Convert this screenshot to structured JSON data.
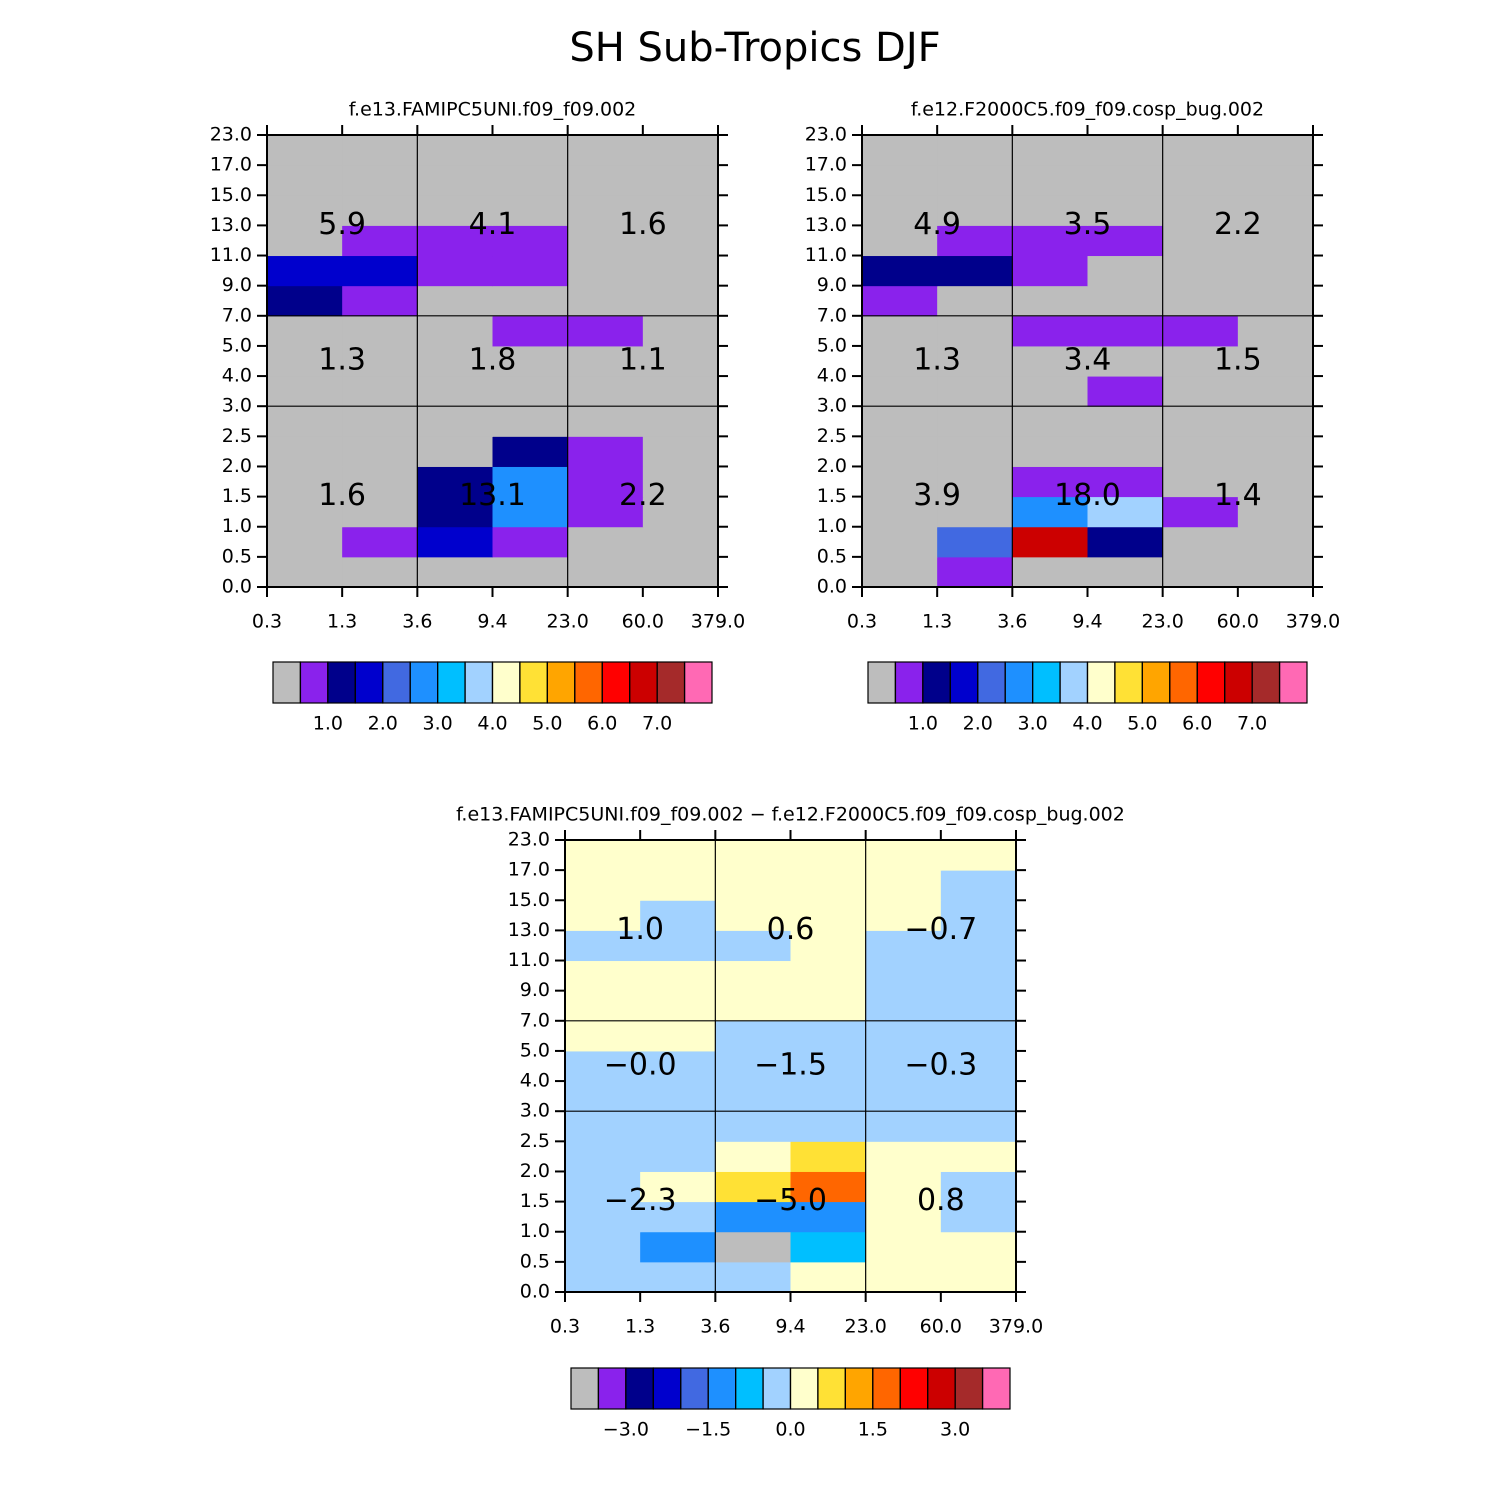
{
  "title": "SH Sub-Tropics DJF",
  "chart_data": [
    {
      "type": "heatmap",
      "title": "f.e13.FAMIPC5UNI.f09_f09.002",
      "x_edges": [
        0.3,
        1.3,
        3.6,
        9.4,
        {
          "value": 23,
          "label": "23.0"
        },
        {
          "value": 60,
          "label": "60.0"
        },
        {
          "value": 379,
          "label": "379.0"
        }
      ],
      "y_edges": [
        {
          "value": 0,
          "label": "0.0"
        },
        0.5,
        {
          "value": 1,
          "label": "1.0"
        },
        1.5,
        {
          "value": 2,
          "label": "2.0"
        },
        2.5,
        {
          "value": 3,
          "label": "3.0"
        },
        {
          "value": 4,
          "label": "4.0"
        },
        {
          "value": 5,
          "label": "5.0"
        },
        {
          "value": 7,
          "label": "7.0"
        },
        {
          "value": 9,
          "label": "9.0"
        },
        {
          "value": 11,
          "label": "11.0"
        },
        {
          "value": 13,
          "label": "13.0"
        },
        {
          "value": 15,
          "label": "15.0"
        },
        {
          "value": 17,
          "label": "17.0"
        },
        {
          "value": 23,
          "label": "23.0"
        }
      ],
      "values": [
        [
          0,
          0,
          0,
          0,
          0,
          0
        ],
        [
          0,
          0.75,
          1.75,
          0.75,
          0,
          0
        ],
        [
          0,
          0,
          1.25,
          2.75,
          0.75,
          0
        ],
        [
          0,
          0,
          1.25,
          2.75,
          0.75,
          0
        ],
        [
          0,
          0,
          0,
          1.25,
          0.75,
          0
        ],
        [
          0,
          0,
          0,
          0,
          0,
          0
        ],
        [
          0,
          0,
          0,
          0,
          0,
          0
        ],
        [
          0,
          0,
          0,
          0,
          0,
          0
        ],
        [
          0,
          0,
          0,
          0.75,
          0.75,
          0
        ],
        [
          1.25,
          0.75,
          0,
          0,
          0,
          0
        ],
        [
          1.75,
          1.75,
          0.75,
          0.75,
          0,
          0
        ],
        [
          0,
          0.75,
          0.75,
          0.75,
          0,
          0
        ],
        [
          0,
          0,
          0,
          0,
          0,
          0
        ],
        [
          0,
          0,
          0,
          0,
          0,
          0
        ],
        [
          0,
          0,
          0,
          0,
          0,
          0
        ]
      ],
      "box_values": [
        [
          1.6,
          13.1,
          2.2
        ],
        [
          1.3,
          1.8,
          1.1
        ],
        [
          5.9,
          4.1,
          1.6
        ]
      ],
      "box_labels": [
        [
          "1.6",
          "13.1",
          "2.2"
        ],
        [
          "1.3",
          "1.8",
          "1.1"
        ],
        [
          "5.9",
          "4.1",
          "1.6"
        ]
      ],
      "colorbar": {
        "levels": [
          0.5,
          1,
          1.5,
          2,
          2.5,
          3,
          3.5,
          4,
          4.5,
          5,
          5.5,
          6,
          6.5,
          7,
          7.5
        ],
        "ticks": [
          {
            "value": 1,
            "label": "1.0"
          },
          {
            "value": 2,
            "label": "2.0"
          },
          {
            "value": 3,
            "label": "3.0"
          },
          {
            "value": 4,
            "label": "4.0"
          },
          {
            "value": 5,
            "label": "5.0"
          },
          {
            "value": 6,
            "label": "6.0"
          },
          {
            "value": 7,
            "label": "7.0"
          }
        ],
        "colors": [
          "#bdbdbd",
          "#8a22ec",
          "#00008b",
          "#0000cd",
          "#4169e1",
          "#1e90ff",
          "#00bfff",
          "#a2d2ff",
          "#ffffcc",
          "#ffe135",
          "#ffa500",
          "#ff6600",
          "#ff0000",
          "#cc0000",
          "#a52a2a",
          "#ff69b4"
        ]
      }
    },
    {
      "type": "heatmap",
      "title": "f.e12.F2000C5.f09_f09.cosp_bug.002",
      "x_edges": [
        0.3,
        1.3,
        3.6,
        9.4,
        {
          "value": 23,
          "label": "23.0"
        },
        {
          "value": 60,
          "label": "60.0"
        },
        {
          "value": 379,
          "label": "379.0"
        }
      ],
      "y_edges": [
        {
          "value": 0,
          "label": "0.0"
        },
        0.5,
        {
          "value": 1,
          "label": "1.0"
        },
        1.5,
        {
          "value": 2,
          "label": "2.0"
        },
        2.5,
        {
          "value": 3,
          "label": "3.0"
        },
        {
          "value": 4,
          "label": "4.0"
        },
        {
          "value": 5,
          "label": "5.0"
        },
        {
          "value": 7,
          "label": "7.0"
        },
        {
          "value": 9,
          "label": "9.0"
        },
        {
          "value": 11,
          "label": "11.0"
        },
        {
          "value": 13,
          "label": "13.0"
        },
        {
          "value": 15,
          "label": "15.0"
        },
        {
          "value": 17,
          "label": "17.0"
        },
        {
          "value": 23,
          "label": "23.0"
        }
      ],
      "values": [
        [
          0,
          0.75,
          0,
          0,
          0,
          0
        ],
        [
          0,
          2.25,
          6.75,
          1.25,
          0,
          0
        ],
        [
          0,
          0,
          2.75,
          3.75,
          0.75,
          0
        ],
        [
          0,
          0,
          0.75,
          0.75,
          0,
          0
        ],
        [
          0,
          0,
          0,
          0,
          0,
          0
        ],
        [
          0,
          0,
          0,
          0,
          0,
          0
        ],
        [
          0,
          0,
          0,
          0.75,
          0,
          0
        ],
        [
          0,
          0,
          0,
          0,
          0,
          0
        ],
        [
          0,
          0,
          0.75,
          0.75,
          0.75,
          0
        ],
        [
          0.75,
          0,
          0,
          0,
          0,
          0
        ],
        [
          1.25,
          1.25,
          0.75,
          0,
          0,
          0
        ],
        [
          0,
          0.75,
          0.75,
          0.75,
          0,
          0
        ],
        [
          0,
          0,
          0,
          0,
          0,
          0
        ],
        [
          0,
          0,
          0,
          0,
          0,
          0
        ],
        [
          0,
          0,
          0,
          0,
          0,
          0
        ]
      ],
      "box_values": [
        [
          3.9,
          18.0,
          1.4
        ],
        [
          1.3,
          3.4,
          1.5
        ],
        [
          4.9,
          3.5,
          2.2
        ]
      ],
      "box_labels": [
        [
          "3.9",
          "18.0",
          "1.4"
        ],
        [
          "1.3",
          "3.4",
          "1.5"
        ],
        [
          "4.9",
          "3.5",
          "2.2"
        ]
      ],
      "colorbar": {
        "levels": [
          0.5,
          1,
          1.5,
          2,
          2.5,
          3,
          3.5,
          4,
          4.5,
          5,
          5.5,
          6,
          6.5,
          7,
          7.5
        ],
        "ticks": [
          {
            "value": 1,
            "label": "1.0"
          },
          {
            "value": 2,
            "label": "2.0"
          },
          {
            "value": 3,
            "label": "3.0"
          },
          {
            "value": 4,
            "label": "4.0"
          },
          {
            "value": 5,
            "label": "5.0"
          },
          {
            "value": 6,
            "label": "6.0"
          },
          {
            "value": 7,
            "label": "7.0"
          }
        ],
        "colors": [
          "#bdbdbd",
          "#8a22ec",
          "#00008b",
          "#0000cd",
          "#4169e1",
          "#1e90ff",
          "#00bfff",
          "#a2d2ff",
          "#ffffcc",
          "#ffe135",
          "#ffa500",
          "#ff6600",
          "#ff0000",
          "#cc0000",
          "#a52a2a",
          "#ff69b4"
        ]
      }
    },
    {
      "type": "heatmap",
      "title": "f.e13.FAMIPC5UNI.f09_f09.002 − f.e12.F2000C5.f09_f09.cosp_bug.002",
      "x_edges": [
        0.3,
        1.3,
        3.6,
        9.4,
        {
          "value": 23,
          "label": "23.0"
        },
        {
          "value": 60,
          "label": "60.0"
        },
        {
          "value": 379,
          "label": "379.0"
        }
      ],
      "y_edges": [
        {
          "value": 0,
          "label": "0.0"
        },
        0.5,
        {
          "value": 1,
          "label": "1.0"
        },
        1.5,
        {
          "value": 2,
          "label": "2.0"
        },
        2.5,
        {
          "value": 3,
          "label": "3.0"
        },
        {
          "value": 4,
          "label": "4.0"
        },
        {
          "value": 5,
          "label": "5.0"
        },
        {
          "value": 7,
          "label": "7.0"
        },
        {
          "value": 9,
          "label": "9.0"
        },
        {
          "value": 11,
          "label": "11.0"
        },
        {
          "value": 13,
          "label": "13.0"
        },
        {
          "value": 15,
          "label": "15.0"
        },
        {
          "value": 17,
          "label": "17.0"
        },
        {
          "value": 23,
          "label": "23.0"
        }
      ],
      "values": [
        [
          -0.25,
          -0.25,
          -0.25,
          0.25,
          0.25,
          0.25
        ],
        [
          -0.25,
          -1.25,
          -4,
          -0.75,
          0.25,
          0.25
        ],
        [
          -0.25,
          -0.25,
          -1.25,
          -1.25,
          0.25,
          -0.25
        ],
        [
          -0.25,
          0.25,
          0.75,
          1.75,
          0.25,
          -0.25
        ],
        [
          -0.25,
          -0.25,
          0.25,
          0.75,
          0.25,
          0.25
        ],
        [
          -0.25,
          -0.25,
          -0.25,
          -0.25,
          -0.25,
          -0.25
        ],
        [
          -0.25,
          -0.25,
          -0.25,
          -0.25,
          -0.25,
          -0.25
        ],
        [
          -0.25,
          -0.25,
          -0.25,
          -0.25,
          -0.25,
          -0.25
        ],
        [
          0.25,
          0.25,
          -0.25,
          -0.25,
          -0.25,
          -0.25
        ],
        [
          0.25,
          0.25,
          0.25,
          0.25,
          -0.25,
          -0.25
        ],
        [
          0.25,
          0.25,
          0.25,
          0.25,
          -0.25,
          -0.25
        ],
        [
          -0.25,
          -0.25,
          -0.25,
          0.25,
          -0.25,
          -0.25
        ],
        [
          0.25,
          -0.25,
          0.25,
          0.25,
          0.25,
          -0.25
        ],
        [
          0.25,
          0.25,
          0.25,
          0.25,
          0.25,
          -0.25
        ],
        [
          0.25,
          0.25,
          0.25,
          0.25,
          0.25,
          0.25
        ]
      ],
      "box_values": [
        [
          -2.3,
          -5.0,
          0.8
        ],
        [
          -0.0,
          -1.5,
          -0.3
        ],
        [
          1.0,
          0.6,
          -0.7
        ]
      ],
      "box_labels": [
        [
          "−2.3",
          "−5.0",
          "0.8"
        ],
        [
          "−0.0",
          "−1.5",
          "−0.3"
        ],
        [
          "1.0",
          "0.6",
          "−0.7"
        ]
      ],
      "colorbar": {
        "levels": [
          -3.5,
          -3,
          -2.5,
          -2,
          -1.5,
          -1,
          -0.5,
          0,
          0.5,
          1,
          1.5,
          2,
          2.5,
          3,
          3.5
        ],
        "ticks": [
          {
            "value": -3,
            "label": "−3.0"
          },
          {
            "value": -1.5,
            "label": "−1.5"
          },
          {
            "value": 0,
            "label": "0.0"
          },
          {
            "value": 1.5,
            "label": "1.5"
          },
          {
            "value": 3,
            "label": "3.0"
          }
        ],
        "colors": [
          "#bdbdbd",
          "#8a22ec",
          "#00008b",
          "#0000cd",
          "#4169e1",
          "#1e90ff",
          "#00bfff",
          "#a2d2ff",
          "#ffffcc",
          "#ffe135",
          "#ffa500",
          "#ff6600",
          "#ff0000",
          "#cc0000",
          "#a52a2a",
          "#ff69b4"
        ]
      }
    }
  ]
}
